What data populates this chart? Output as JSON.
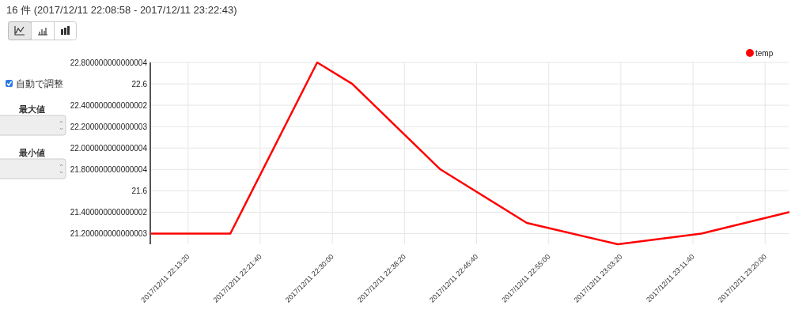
{
  "chart_data": {
    "type": "line",
    "title": "16 件 (2017/12/11 22:08:58 - 2017/12/11 23:22:43)",
    "annotations": [
      "自動で調整",
      "最大値",
      "最小値"
    ],
    "x": [
      "2017-12-11T22:08:58",
      "2017-12-11T22:18:13",
      "2017-12-11T22:28:15",
      "2017-12-11T22:32:18",
      "2017-12-11T22:42:29",
      "2017-12-11T22:52:28",
      "2017-12-11T23:02:59",
      "2017-12-11T23:12:38",
      "2017-12-11T23:22:43"
    ],
    "series": [
      {
        "name": "temp",
        "color": "#ff0000",
        "values": [
          21.2,
          21.2,
          22.8,
          22.6,
          21.8,
          21.3,
          21.1,
          21.2,
          21.4
        ]
      }
    ],
    "xlim": [
      "2017-12-11T22:08:58",
      "2017-12-11T23:22:43"
    ],
    "xticks": [
      {
        "value": "2017-12-11T22:13:20",
        "label": "2017/12/11 22:13:20"
      },
      {
        "value": "2017-12-11T22:21:40",
        "label": "2017/12/11 22:21:40"
      },
      {
        "value": "2017-12-11T22:30:00",
        "label": "2017/12/11 22:30:00"
      },
      {
        "value": "2017-12-11T22:38:20",
        "label": "2017/12/11 22:38:20"
      },
      {
        "value": "2017-12-11T22:46:40",
        "label": "2017/12/11 22:46:40"
      },
      {
        "value": "2017-12-11T22:55:00",
        "label": "2017/12/11 22:55:00"
      },
      {
        "value": "2017-12-11T23:03:20",
        "label": "2017/12/11 23:03:20"
      },
      {
        "value": "2017-12-11T23:11:40",
        "label": "2017/12/11 23:11:40"
      },
      {
        "value": "2017-12-11T23:20:00",
        "label": "2017/12/11 23:20:00"
      }
    ],
    "ylim": [
      21.1,
      22.8
    ],
    "yticks": [
      {
        "value": 21.2,
        "label": "21.200000000000003"
      },
      {
        "value": 21.4,
        "label": "21.400000000000002"
      },
      21.6,
      {
        "value": 21.8,
        "label": "21.800000000000004"
      },
      {
        "value": 22.0,
        "label": "22.000000000000004"
      },
      {
        "value": 22.2,
        "label": "22.200000000000003"
      },
      {
        "value": 22.4,
        "label": "22.400000000000002"
      },
      22.6,
      {
        "value": 22.8,
        "label": "22.800000000000004"
      }
    ],
    "grid": true,
    "legend": "top right"
  }
}
